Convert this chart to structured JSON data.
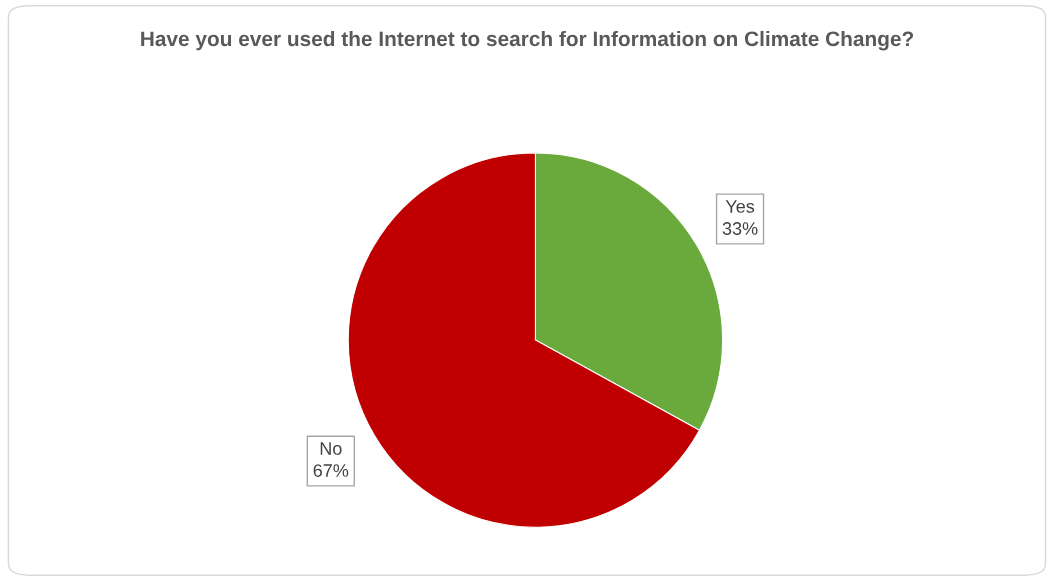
{
  "chart_data": {
    "type": "pie",
    "title": "Have you ever used the Internet to search for Information on Climate Change?",
    "categories": [
      "Yes",
      "No"
    ],
    "values": [
      33,
      67
    ],
    "value_labels": [
      "33%",
      "67%"
    ],
    "colors": [
      "#6aaa3c",
      "#c00000"
    ],
    "legend": false
  }
}
